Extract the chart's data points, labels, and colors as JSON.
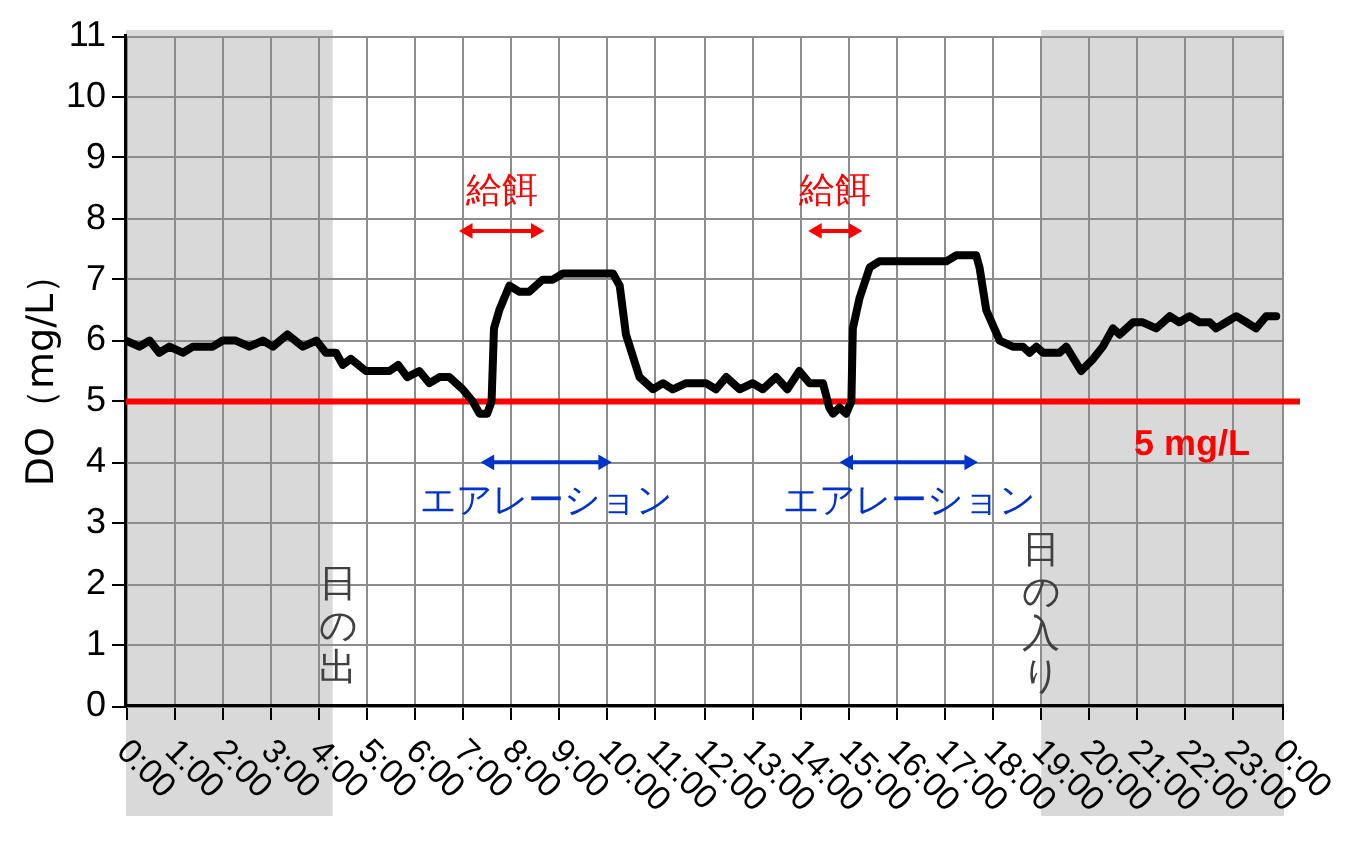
{
  "chart_data": {
    "type": "line",
    "ylabel": "DO（mg/L）",
    "x": [
      0,
      0.28,
      0.49,
      0.69,
      0.9,
      1.18,
      1.39,
      1.8,
      2.01,
      2.28,
      2.56,
      2.84,
      3.05,
      3.35,
      3.67,
      3.95,
      4.15,
      4.36,
      4.5,
      4.67,
      4.98,
      5.47,
      5.65,
      5.84,
      6.09,
      6.3,
      6.51,
      6.71,
      6.99,
      7.2,
      7.34,
      7.5,
      7.59,
      7.64,
      7.75,
      7.96,
      8.17,
      8.37,
      8.65,
      8.86,
      9.07,
      10.11,
      10.25,
      10.38,
      10.66,
      10.94,
      11.15,
      11.35,
      11.63,
      12.04,
      12.25,
      12.46,
      12.74,
      13.01,
      13.22,
      13.5,
      13.73,
      13.98,
      14.19,
      14.47,
      14.6,
      14.68,
      14.81,
      14.95,
      15.06,
      15.09,
      15.23,
      15.44,
      15.64,
      17.03,
      17.24,
      17.65,
      17.72,
      17.86,
      18.14,
      18.41,
      18.62,
      18.76,
      18.9,
      19.04,
      19.38,
      19.52,
      19.83,
      20.08,
      20.28,
      20.49,
      20.63,
      20.91,
      21.11,
      21.39,
      21.67,
      21.87,
      22.08,
      22.29,
      22.5,
      22.63,
      22.84,
      23.05,
      23.26,
      23.46,
      23.67,
      23.88
    ],
    "series": [
      {
        "color": "#000000",
        "values": [
          6.0,
          5.9,
          6.0,
          5.8,
          5.9,
          5.8,
          5.9,
          5.9,
          6.0,
          6.0,
          5.9,
          6.0,
          5.9,
          6.1,
          5.9,
          6.0,
          5.8,
          5.8,
          5.6,
          5.7,
          5.5,
          5.5,
          5.6,
          5.4,
          5.5,
          5.3,
          5.4,
          5.4,
          5.2,
          5.0,
          4.8,
          4.8,
          5.0,
          6.2,
          6.5,
          6.9,
          6.8,
          6.8,
          7.0,
          7.0,
          7.1,
          7.1,
          6.9,
          6.1,
          5.4,
          5.2,
          5.3,
          5.2,
          5.3,
          5.3,
          5.2,
          5.4,
          5.2,
          5.3,
          5.2,
          5.4,
          5.2,
          5.5,
          5.3,
          5.3,
          4.9,
          4.8,
          4.9,
          4.8,
          5.0,
          6.2,
          6.7,
          7.2,
          7.3,
          7.3,
          7.4,
          7.4,
          7.2,
          6.5,
          6.0,
          5.9,
          5.9,
          5.8,
          5.9,
          5.8,
          5.8,
          5.9,
          5.5,
          5.7,
          5.9,
          6.2,
          6.1,
          6.3,
          6.3,
          6.2,
          6.4,
          6.3,
          6.4,
          6.3,
          6.3,
          6.2,
          6.3,
          6.4,
          6.3,
          6.2,
          6.4,
          6.4
        ]
      },
      {
        "name": "給餌",
        "color": "#ff0000",
        "marker": "triangle",
        "x": [
          7.1,
          8.5
        ],
        "values": [
          7.8,
          7.8
        ]
      },
      {
        "name": "エアレーション",
        "color": "#0033cc",
        "marker": "triangle",
        "x": [
          7.55,
          9.9
        ],
        "values": [
          4.0,
          4.0
        ]
      },
      {
        "name": "給餌",
        "color": "#ff0000",
        "marker": "triangle",
        "x": [
          14.35,
          15.1
        ],
        "values": [
          7.8,
          7.8
        ]
      },
      {
        "name": "エアレーション",
        "color": "#0033cc",
        "marker": "triangle",
        "x": [
          15.0,
          17.5
        ],
        "values": [
          4.0,
          4.0
        ]
      }
    ],
    "xlim": [
      0,
      24
    ],
    "xticks": [
      {
        "value": 0,
        "label": "0:00"
      },
      {
        "value": 1,
        "label": "1:00"
      },
      {
        "value": 2,
        "label": "2:00"
      },
      {
        "value": 3,
        "label": "3:00"
      },
      {
        "value": 4,
        "label": "4:00"
      },
      {
        "value": 5,
        "label": "5:00"
      },
      {
        "value": 6,
        "label": "6:00"
      },
      {
        "value": 7,
        "label": "7:00"
      },
      {
        "value": 8,
        "label": "8:00"
      },
      {
        "value": 9,
        "label": "9:00"
      },
      {
        "value": 10,
        "label": "10:00"
      },
      {
        "value": 11,
        "label": "11:00"
      },
      {
        "value": 12,
        "label": "12:00"
      },
      {
        "value": 13,
        "label": "13:00"
      },
      {
        "value": 14,
        "label": "14:00"
      },
      {
        "value": 15,
        "label": "15:00"
      },
      {
        "value": 16,
        "label": "16:00"
      },
      {
        "value": 17,
        "label": "17:00"
      },
      {
        "value": 18,
        "label": "18:00"
      },
      {
        "value": 19,
        "label": "19:00"
      },
      {
        "value": 20,
        "label": "20:00"
      },
      {
        "value": 21,
        "label": "21:00"
      },
      {
        "value": 22,
        "label": "22:00"
      },
      {
        "value": 23,
        "label": "23:00"
      },
      {
        "value": 24,
        "label": "0:00"
      }
    ],
    "ylim": [
      0,
      11
    ],
    "yticks": [
      0,
      1,
      2,
      3,
      4,
      5,
      6,
      7,
      8,
      9,
      10,
      11
    ],
    "grid": true,
    "ref_lines": [
      {
        "axis": "y",
        "value": 5,
        "label": "5 mg/L",
        "color": "#ff0000"
      }
    ],
    "bands": [
      {
        "axis": "x",
        "from": 0,
        "to": 4.25,
        "color": "#d9d9d9"
      },
      {
        "axis": "x",
        "from": 19,
        "to": 24,
        "color": "#d9d9d9"
      }
    ],
    "annotations": [
      {
        "text": "日の出",
        "x": 4.4,
        "y": 1.3
      },
      {
        "text": "日の入り",
        "x": 19,
        "y": 1.5
      }
    ]
  }
}
